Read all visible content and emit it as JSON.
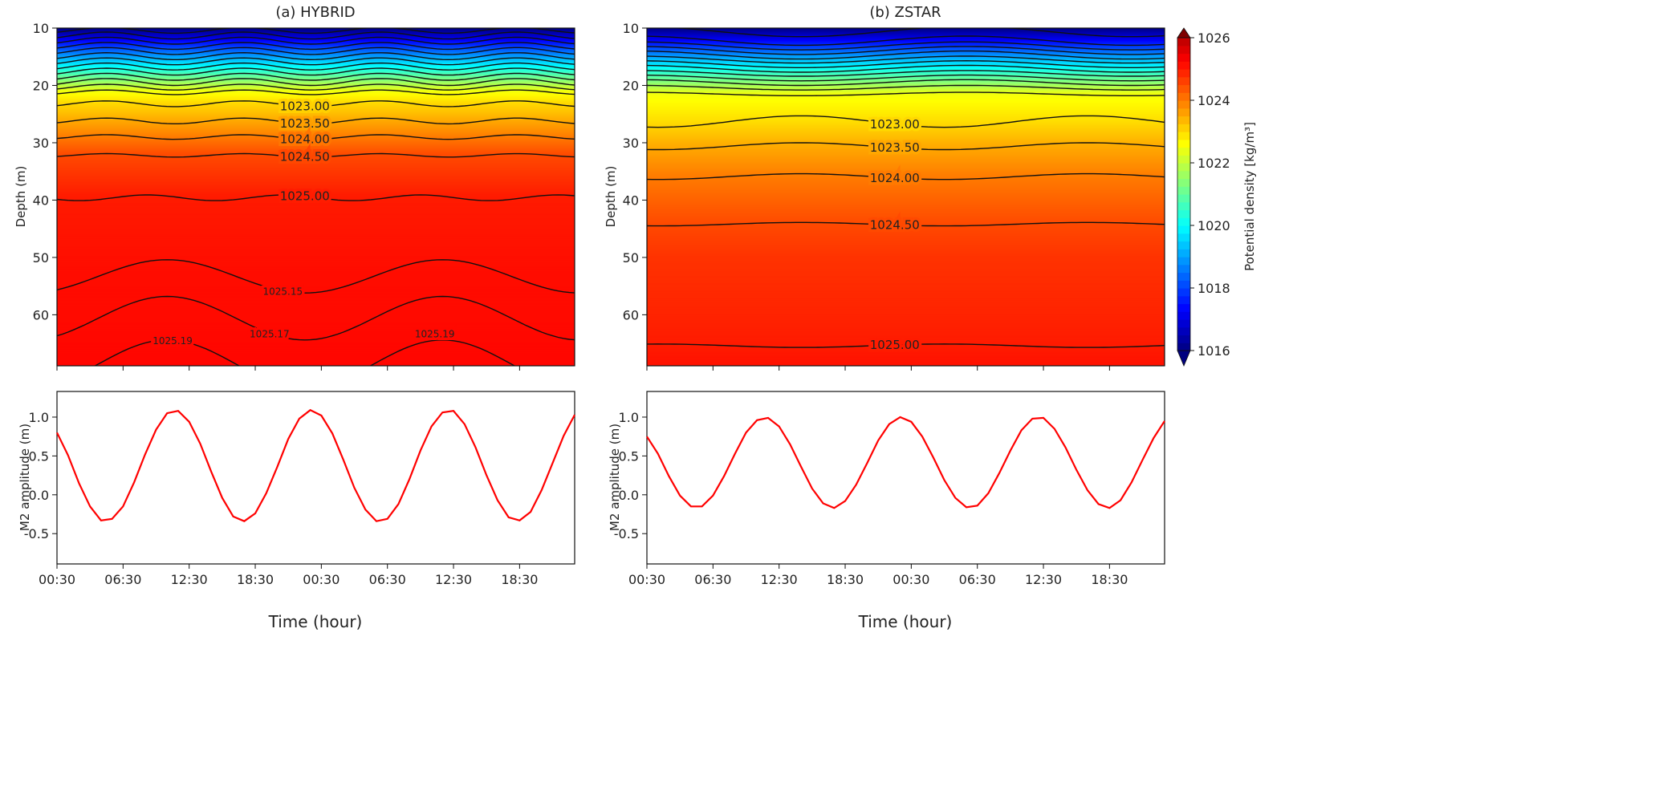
{
  "chart_data": [
    {
      "type": "heatmap",
      "subtype": "filled-contour",
      "title": "(a) HYBRID",
      "xlabel": "Time (hour)",
      "ylabel": "Depth (m)",
      "x_unit": "hours since 00:30",
      "xlim": [
        0,
        47
      ],
      "ylim": [
        10,
        68.9
      ],
      "y_inverted": true,
      "yticks": [
        10,
        20,
        30,
        40,
        50,
        60
      ],
      "xticks": [
        0,
        6,
        12,
        18,
        24,
        30,
        36,
        42
      ],
      "xtick_labels": [
        "00:30",
        "06:30",
        "12:30",
        "18:30",
        "00:30",
        "06:30",
        "12:30",
        "18:30"
      ],
      "density_profile": [
        [
          10,
          1016.0
        ],
        [
          15,
          1019.0
        ],
        [
          21,
          1022.5
        ],
        [
          23,
          1023.0
        ],
        [
          26,
          1023.5
        ],
        [
          29,
          1024.0
        ],
        [
          32,
          1024.5
        ],
        [
          39.5,
          1025.0
        ],
        [
          53,
          1025.15
        ],
        [
          60,
          1025.17
        ],
        [
          69,
          1025.22
        ]
      ],
      "contours": [
        {
          "level": 1016.5,
          "label": null,
          "depth": 10.4,
          "amp": 0.5,
          "period": 12.42,
          "phase": 10.7
        },
        {
          "level": 1017.0,
          "label": null,
          "depth": 11.3,
          "amp": 0.6,
          "period": 12.42,
          "phase": 10.7
        },
        {
          "level": 1017.5,
          "label": null,
          "depth": 12.2,
          "amp": 0.6,
          "period": 12.42,
          "phase": 10.7
        },
        {
          "level": 1018.0,
          "label": null,
          "depth": 13.1,
          "amp": 0.6,
          "period": 12.42,
          "phase": 10.7
        },
        {
          "level": 1018.5,
          "label": null,
          "depth": 14.0,
          "amp": 0.6,
          "period": 12.42,
          "phase": 10.7
        },
        {
          "level": 1019.0,
          "label": null,
          "depth": 14.9,
          "amp": 0.6,
          "period": 12.42,
          "phase": 10.7
        },
        {
          "level": 1019.5,
          "label": null,
          "depth": 15.8,
          "amp": 0.6,
          "period": 12.42,
          "phase": 10.7
        },
        {
          "level": 1020.0,
          "label": null,
          "depth": 16.7,
          "amp": 0.6,
          "period": 12.42,
          "phase": 10.7
        },
        {
          "level": 1020.5,
          "label": null,
          "depth": 17.6,
          "amp": 0.6,
          "period": 12.42,
          "phase": 10.7
        },
        {
          "level": 1021.0,
          "label": null,
          "depth": 18.5,
          "amp": 0.6,
          "period": 12.42,
          "phase": 10.7
        },
        {
          "level": 1021.5,
          "label": null,
          "depth": 19.4,
          "amp": 0.6,
          "period": 12.42,
          "phase": 10.7
        },
        {
          "level": 1022.0,
          "label": null,
          "depth": 20.3,
          "amp": 0.5,
          "period": 12.42,
          "phase": 10.7
        },
        {
          "level": 1022.5,
          "label": null,
          "depth": 21.2,
          "amp": 0.4,
          "period": 12.42,
          "phase": 10.7
        },
        {
          "level": 1023.0,
          "label": "1023.00",
          "depth": 23.2,
          "amp": 0.5,
          "period": 12.42,
          "phase": 10.7,
          "label_hour": 22.5
        },
        {
          "level": 1023.5,
          "label": "1023.50",
          "depth": 26.2,
          "amp": 0.5,
          "period": 12.42,
          "phase": 10.7,
          "label_hour": 22.5
        },
        {
          "level": 1024.0,
          "label": "1024.00",
          "depth": 29.0,
          "amp": 0.4,
          "period": 12.42,
          "phase": 10.7,
          "label_hour": 22.5
        },
        {
          "level": 1024.5,
          "label": "1024.50",
          "depth": 32.2,
          "amp": 0.3,
          "period": 12.42,
          "phase": 10.7,
          "label_hour": 22.5
        },
        {
          "level": 1025.0,
          "label": "1025.00",
          "depth": 39.6,
          "amp": 0.5,
          "period": 12.42,
          "phase": 2.0,
          "label_hour": 22.5
        },
        {
          "level": 1025.15,
          "label": "1025.15",
          "depth": 53.3,
          "amp": 2.9,
          "period": 25,
          "phase": 22.5,
          "label_hour": 20.5
        },
        {
          "level": 1025.17,
          "label": "1025.17",
          "depth": 60.6,
          "amp": 3.8,
          "period": 25,
          "phase": 22.5,
          "label_hour": 19.3
        },
        {
          "level": 1025.19,
          "label": "1025.19",
          "depth": 68.6,
          "amp": 4.2,
          "period": 25,
          "phase": 22.5,
          "label_hour": 10.5
        }
      ],
      "extra_labels": [
        {
          "text": "1025.19",
          "hour": 34.3,
          "depth": 63.2
        }
      ]
    },
    {
      "type": "heatmap",
      "subtype": "filled-contour",
      "title": "(b) ZSTAR",
      "xlabel": "Time (hour)",
      "ylabel": "Depth (m)",
      "x_unit": "hours since 00:30",
      "xlim": [
        0,
        47
      ],
      "ylim": [
        10,
        68.9
      ],
      "y_inverted": true,
      "yticks": [
        10,
        20,
        30,
        40,
        50,
        60
      ],
      "xticks": [
        0,
        6,
        12,
        18,
        24,
        30,
        36,
        42
      ],
      "xtick_labels": [
        "00:30",
        "06:30",
        "12:30",
        "18:30",
        "00:30",
        "06:30",
        "12:30",
        "18:30"
      ],
      "density_profile": [
        [
          10,
          1016.0
        ],
        [
          15,
          1019.0
        ],
        [
          21.5,
          1022.5
        ],
        [
          26.5,
          1023.0
        ],
        [
          30.5,
          1023.5
        ],
        [
          36,
          1024.0
        ],
        [
          44,
          1024.5
        ],
        [
          50,
          1024.75
        ],
        [
          65.5,
          1025.0
        ],
        [
          69,
          1025.1
        ]
      ],
      "contours": [
        {
          "level": 1016.5,
          "label": null,
          "depth": 10.6,
          "amp": 0.9,
          "period": 30,
          "phase": 14
        },
        {
          "level": 1017.0,
          "label": null,
          "depth": 12.2,
          "amp": 0.8,
          "period": 30,
          "phase": 14
        },
        {
          "level": 1017.5,
          "label": null,
          "depth": 13.1,
          "amp": 0.7,
          "period": 30,
          "phase": 14
        },
        {
          "level": 1018.0,
          "label": null,
          "depth": 13.9,
          "amp": 0.7,
          "period": 30,
          "phase": 14
        },
        {
          "level": 1018.5,
          "label": null,
          "depth": 14.7,
          "amp": 0.7,
          "period": 30,
          "phase": 14
        },
        {
          "level": 1019.0,
          "label": null,
          "depth": 15.5,
          "amp": 0.6,
          "period": 30,
          "phase": 14
        },
        {
          "level": 1019.5,
          "label": null,
          "depth": 16.3,
          "amp": 0.6,
          "period": 30,
          "phase": 14
        },
        {
          "level": 1020.0,
          "label": null,
          "depth": 17.1,
          "amp": 0.6,
          "period": 30,
          "phase": 14
        },
        {
          "level": 1020.5,
          "label": null,
          "depth": 17.9,
          "amp": 0.5,
          "period": 30,
          "phase": 14
        },
        {
          "level": 1021.0,
          "label": null,
          "depth": 18.7,
          "amp": 0.5,
          "period": 30,
          "phase": 14
        },
        {
          "level": 1021.5,
          "label": null,
          "depth": 19.5,
          "amp": 0.5,
          "period": 30,
          "phase": 14
        },
        {
          "level": 1022.0,
          "label": null,
          "depth": 20.4,
          "amp": 0.4,
          "period": 30,
          "phase": 14
        },
        {
          "level": 1022.5,
          "label": null,
          "depth": 21.5,
          "amp": 0.3,
          "period": 30,
          "phase": 14
        },
        {
          "level": 1023.0,
          "label": "1023.00",
          "depth": 26.3,
          "amp": 1.0,
          "period": 26,
          "phase": 27,
          "label_hour": 22.5
        },
        {
          "level": 1023.5,
          "label": "1023.50",
          "depth": 30.6,
          "amp": 0.6,
          "period": 26,
          "phase": 27,
          "label_hour": 22.5
        },
        {
          "level": 1024.0,
          "label": "1024.00",
          "depth": 35.9,
          "amp": 0.5,
          "period": 26,
          "phase": 27,
          "label_hour": 22.5
        },
        {
          "level": 1024.5,
          "label": "1024.50",
          "depth": 44.2,
          "amp": 0.3,
          "period": 26,
          "phase": 27,
          "label_hour": 22.5
        },
        {
          "level": 1025.0,
          "label": "1025.00",
          "depth": 65.4,
          "amp": 0.3,
          "period": 26,
          "phase": 14,
          "label_hour": 22.5
        }
      ],
      "extra_labels": []
    },
    {
      "type": "line",
      "title": "",
      "xlabel": "Time (hour)",
      "ylabel": "M2 amplitude (m)",
      "xlim": [
        0,
        47
      ],
      "ylim": [
        -0.89,
        1.33
      ],
      "yticks": [
        -0.5,
        0.0,
        0.5,
        1.0
      ],
      "ytick_labels": [
        "-0.5",
        "0.0",
        "0.5",
        "1.0"
      ],
      "xticks": [
        0,
        6,
        12,
        18,
        24,
        30,
        36,
        42
      ],
      "xtick_labels": [
        "00:30",
        "06:30",
        "12:30",
        "18:30",
        "00:30",
        "06:30",
        "12:30",
        "18:30"
      ],
      "series": [
        {
          "name": "HYBRID",
          "color": "#ff0000",
          "values": [
            0.8,
            0.51,
            0.15,
            -0.15,
            -0.33,
            -0.31,
            -0.15,
            0.16,
            0.52,
            0.84,
            1.05,
            1.08,
            0.94,
            0.66,
            0.3,
            -0.04,
            -0.28,
            -0.34,
            -0.24,
            0.02,
            0.36,
            0.72,
            0.98,
            1.09,
            1.02,
            0.79,
            0.45,
            0.09,
            -0.19,
            -0.34,
            -0.31,
            -0.12,
            0.2,
            0.57,
            0.88,
            1.06,
            1.08,
            0.91,
            0.61,
            0.25,
            -0.07,
            -0.29,
            -0.33,
            -0.22,
            0.06,
            0.41,
            0.76,
            1.03
          ]
        }
      ]
    },
    {
      "type": "line",
      "title": "",
      "xlabel": "Time (hour)",
      "ylabel": "M2 amplitude (m)",
      "xlim": [
        0,
        47
      ],
      "ylim": [
        -0.89,
        1.33
      ],
      "yticks": [
        -0.5,
        0.0,
        0.5,
        1.0
      ],
      "ytick_labels": [
        "-0.5",
        "0.0",
        "0.5",
        "1.0"
      ],
      "xticks": [
        0,
        6,
        12,
        18,
        24,
        30,
        36,
        42
      ],
      "xtick_labels": [
        "00:30",
        "06:30",
        "12:30",
        "18:30",
        "00:30",
        "06:30",
        "12:30",
        "18:30"
      ],
      "series": [
        {
          "name": "ZSTAR",
          "color": "#ff0000",
          "values": [
            0.75,
            0.53,
            0.24,
            -0.01,
            -0.15,
            -0.15,
            -0.01,
            0.24,
            0.53,
            0.8,
            0.96,
            0.99,
            0.88,
            0.65,
            0.36,
            0.08,
            -0.11,
            -0.17,
            -0.08,
            0.13,
            0.41,
            0.7,
            0.91,
            1.0,
            0.94,
            0.75,
            0.48,
            0.19,
            -0.04,
            -0.16,
            -0.14,
            0.02,
            0.28,
            0.57,
            0.83,
            0.98,
            0.99,
            0.85,
            0.61,
            0.32,
            0.06,
            -0.12,
            -0.17,
            -0.07,
            0.16,
            0.45,
            0.73,
            0.95
          ]
        }
      ]
    }
  ],
  "colorbar": {
    "label": "Potential density [kg/m³]",
    "range": [
      1016,
      1026
    ],
    "ticks": [
      "1016",
      "1018",
      "1020",
      "1022",
      "1024",
      "1026"
    ],
    "colormap": "jet",
    "extend": "both"
  }
}
